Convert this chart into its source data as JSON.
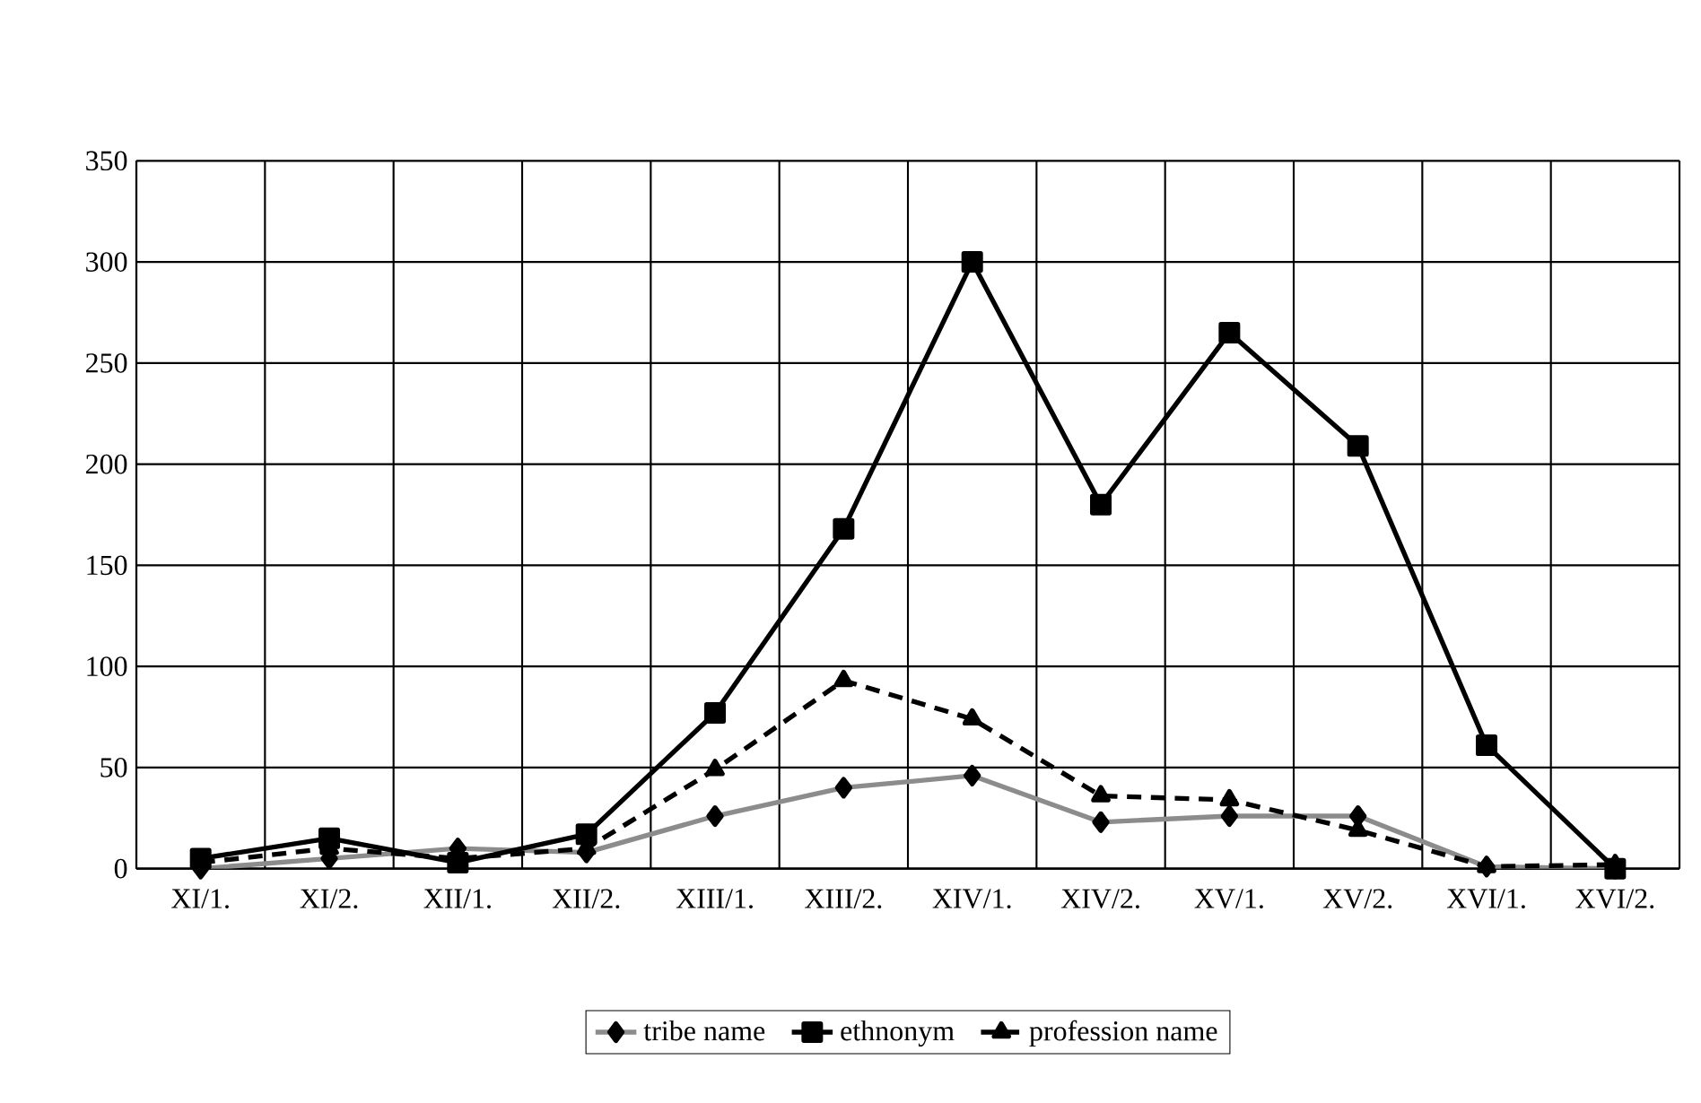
{
  "chart_data": {
    "type": "line",
    "categories": [
      "XI/1.",
      "XI/2.",
      "XII/1.",
      "XII/2.",
      "XIII/1.",
      "XIII/2.",
      "XIV/1.",
      "XIV/2.",
      "XV/1.",
      "XV/2.",
      "XVI/1.",
      "XVI/2."
    ],
    "series": [
      {
        "name": "tribe name",
        "color": "#8c8c8c",
        "marker": "diamond",
        "line_style": "solid",
        "values": [
          0,
          5,
          10,
          8,
          26,
          40,
          46,
          23,
          26,
          26,
          1,
          0
        ]
      },
      {
        "name": "ethnonym",
        "color": "#000000",
        "marker": "square",
        "line_style": "solid",
        "values": [
          5,
          15,
          3,
          17,
          77,
          168,
          300,
          180,
          265,
          209,
          61,
          0
        ]
      },
      {
        "name": "profession name",
        "color": "#000000",
        "marker": "triangle",
        "line_style": "dashed",
        "values": [
          3,
          10,
          5,
          10,
          49,
          93,
          74,
          36,
          34,
          19,
          1,
          2
        ]
      }
    ],
    "ylim": [
      0,
      350
    ],
    "yticks": [
      0,
      50,
      100,
      150,
      200,
      250,
      300,
      350
    ],
    "grid": true,
    "legend": "bottom"
  }
}
